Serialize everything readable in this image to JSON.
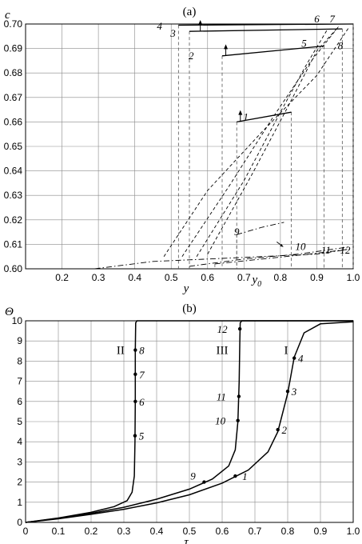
{
  "chart_data": [
    {
      "type": "line",
      "panel_label": "(a)",
      "xlabel": "y",
      "ylabel": "c",
      "xlim": [
        0.1,
        1.0
      ],
      "ylim": [
        0.6,
        0.7
      ],
      "xticks": [
        "0.2",
        "0.3",
        "0.4",
        "0.5",
        "0.6",
        "0.7",
        "0.8",
        "0.9",
        "1.0"
      ],
      "yticks": [
        "0.60",
        "0.61",
        "0.62",
        "0.63",
        "0.64",
        "0.65",
        "0.66",
        "0.67",
        "0.68",
        "0.69",
        "0.70"
      ],
      "extra_xtick": {
        "label": "y",
        "sub": "0",
        "x": 0.735
      },
      "grid": true,
      "series": [
        {
          "style": "dashed",
          "points": [
            [
              0.48,
              0.605
            ],
            [
              0.6,
              0.632
            ],
            [
              0.75,
              0.656
            ],
            [
              0.9,
              0.679
            ],
            [
              0.99,
              0.699
            ]
          ]
        },
        {
          "style": "dashed",
          "points": [
            [
              0.53,
              0.605
            ],
            [
              0.66,
              0.634
            ],
            [
              0.78,
              0.662
            ],
            [
              0.88,
              0.684
            ],
            [
              0.96,
              0.699
            ]
          ]
        },
        {
          "style": "dashed",
          "points": [
            [
              0.57,
              0.605
            ],
            [
              0.7,
              0.636
            ],
            [
              0.8,
              0.664
            ],
            [
              0.87,
              0.683
            ],
            [
              0.93,
              0.698
            ]
          ]
        },
        {
          "style": "dashed",
          "points": [
            [
              0.6,
              0.606
            ],
            [
              0.72,
              0.638
            ],
            [
              0.82,
              0.666
            ],
            [
              0.9,
              0.689
            ],
            [
              0.96,
              0.699
            ]
          ]
        },
        {
          "style": "dashdot",
          "points": [
            [
              0.29,
              0.6
            ],
            [
              0.45,
              0.603
            ],
            [
              0.6,
              0.604
            ],
            [
              0.75,
              0.605
            ],
            [
              0.9,
              0.606
            ],
            [
              0.99,
              0.608
            ]
          ]
        },
        {
          "style": "dashdot",
          "points": [
            [
              0.55,
              0.601
            ],
            [
              0.7,
              0.604
            ],
            [
              0.85,
              0.606
            ],
            [
              0.99,
              0.609
            ]
          ]
        },
        {
          "style": "dashdot",
          "points": [
            [
              0.62,
              0.602
            ],
            [
              0.75,
              0.604
            ],
            [
              0.88,
              0.606
            ],
            [
              0.99,
              0.608
            ]
          ]
        },
        {
          "style": "dashdot",
          "points": [
            [
              0.68,
              0.614
            ],
            [
              0.75,
              0.617
            ],
            [
              0.81,
              0.619
            ]
          ]
        }
      ],
      "segments": [
        {
          "label": "1",
          "points": [
            [
              0.68,
              0.66
            ],
            [
              0.83,
              0.664
            ]
          ],
          "arrow": "up",
          "arrow_x": 0.69,
          "label_at": [
            0.705,
            0.662
          ]
        },
        {
          "label": "2",
          "points": [
            [
              0.64,
              0.687
            ],
            [
              0.92,
              0.691
            ]
          ],
          "arrow": "up",
          "arrow_x": 0.65,
          "label_at": [
            0.555,
            0.687
          ]
        },
        {
          "label": "3",
          "points": [
            [
              0.55,
              0.697
            ],
            [
              0.97,
              0.698
            ]
          ],
          "arrow": "up",
          "arrow_x": 0.58,
          "label_at": [
            0.505,
            0.696
          ]
        },
        {
          "label": "4",
          "points": [
            [
              0.52,
              0.6995
            ],
            [
              1.0,
              0.7
            ]
          ],
          "arrow": "",
          "arrow_x": 0,
          "label_at": [
            0.468,
            0.699
          ]
        }
      ],
      "annotations": [
        {
          "label": "5",
          "at": [
            0.865,
            0.692
          ]
        },
        {
          "label": "6",
          "at": [
            0.9,
            0.702
          ]
        },
        {
          "label": "7",
          "at": [
            0.942,
            0.702
          ]
        },
        {
          "label": "8",
          "at": [
            0.965,
            0.691
          ]
        },
        {
          "label": "9",
          "at": [
            0.68,
            0.615
          ]
        },
        {
          "label": "10",
          "at": [
            0.855,
            0.609
          ]
        },
        {
          "label": "11",
          "at": [
            0.925,
            0.6075
          ]
        },
        {
          "label": "12",
          "at": [
            0.978,
            0.6075
          ]
        }
      ]
    },
    {
      "type": "line",
      "panel_label": "(b)",
      "xlabel": "τ",
      "ylabel": "Θ",
      "xlim": [
        0,
        1.0
      ],
      "ylim": [
        0,
        10
      ],
      "xticks": [
        "0",
        "0.1",
        "0.2",
        "0.3",
        "0.4",
        "0.5",
        "0.6",
        "0.7",
        "0.8",
        "0.9",
        "1.0"
      ],
      "yticks": [
        "0",
        "1",
        "2",
        "3",
        "4",
        "5",
        "6",
        "7",
        "8",
        "9",
        "10"
      ],
      "grid": true,
      "series": [
        {
          "name": "II",
          "label_at": [
            0.29,
            8.55
          ],
          "points": [
            [
              0,
              0
            ],
            [
              0.1,
              0.22
            ],
            [
              0.2,
              0.5
            ],
            [
              0.27,
              0.78
            ],
            [
              0.31,
              1.08
            ],
            [
              0.325,
              1.5
            ],
            [
              0.332,
              2.3
            ],
            [
              0.334,
              4.0
            ],
            [
              0.335,
              6.0
            ],
            [
              0.335,
              8.5
            ],
            [
              0.336,
              9.9
            ],
            [
              0.34,
              10.0
            ],
            [
              1.0,
              10.0
            ]
          ]
        },
        {
          "name": "III",
          "label_at": [
            0.6,
            8.55
          ],
          "points": [
            [
              0,
              0
            ],
            [
              0.1,
              0.2
            ],
            [
              0.2,
              0.45
            ],
            [
              0.3,
              0.75
            ],
            [
              0.4,
              1.15
            ],
            [
              0.5,
              1.65
            ],
            [
              0.57,
              2.15
            ],
            [
              0.62,
              2.8
            ],
            [
              0.64,
              3.6
            ],
            [
              0.648,
              5.0
            ],
            [
              0.652,
              7.0
            ],
            [
              0.654,
              9.0
            ],
            [
              0.655,
              9.9
            ],
            [
              0.66,
              10.0
            ],
            [
              1.0,
              10.0
            ]
          ]
        },
        {
          "name": "I",
          "label_at": [
            0.795,
            8.55
          ],
          "points": [
            [
              0,
              0
            ],
            [
              0.1,
              0.18
            ],
            [
              0.2,
              0.4
            ],
            [
              0.3,
              0.65
            ],
            [
              0.4,
              0.97
            ],
            [
              0.5,
              1.37
            ],
            [
              0.6,
              1.95
            ],
            [
              0.68,
              2.6
            ],
            [
              0.74,
              3.5
            ],
            [
              0.77,
              4.5
            ],
            [
              0.8,
              6.4
            ],
            [
              0.82,
              8.2
            ],
            [
              0.85,
              9.4
            ],
            [
              0.9,
              9.85
            ],
            [
              1.0,
              9.95
            ]
          ]
        }
      ],
      "markers": [
        {
          "label": "1",
          "x": 0.64,
          "y": 2.3,
          "label_dx": 12,
          "label_dy": 5
        },
        {
          "label": "2",
          "x": 0.77,
          "y": 4.6,
          "label_dx": 8,
          "label_dy": 5
        },
        {
          "label": "3",
          "x": 0.8,
          "y": 6.5,
          "label_dx": 8,
          "label_dy": 5
        },
        {
          "label": "4",
          "x": 0.82,
          "y": 8.15,
          "label_dx": 8,
          "label_dy": 5
        },
        {
          "label": "5",
          "x": 0.334,
          "y": 4.3,
          "label_dx": 8,
          "label_dy": 5
        },
        {
          "label": "6",
          "x": 0.335,
          "y": 6.0,
          "label_dx": 8,
          "label_dy": 5
        },
        {
          "label": "7",
          "x": 0.335,
          "y": 7.35,
          "label_dx": 8,
          "label_dy": 5
        },
        {
          "label": "8",
          "x": 0.335,
          "y": 8.55,
          "label_dx": 8,
          "label_dy": 5
        },
        {
          "label": "9",
          "x": 0.545,
          "y": 2.0,
          "label_dx": -14,
          "label_dy": -3
        },
        {
          "label": "10",
          "x": 0.648,
          "y": 5.05,
          "label_dx": -22,
          "label_dy": 5
        },
        {
          "label": "11",
          "x": 0.651,
          "y": 6.25,
          "label_dx": -22,
          "label_dy": 5
        },
        {
          "label": "12",
          "x": 0.654,
          "y": 9.6,
          "label_dx": -22,
          "label_dy": 5
        }
      ]
    }
  ]
}
